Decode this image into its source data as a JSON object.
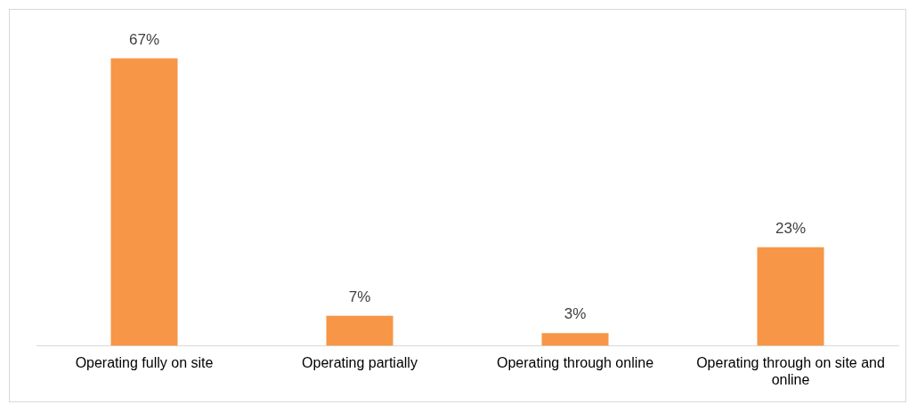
{
  "chart_data": {
    "type": "bar",
    "categories": [
      "Operating fully on site",
      "Operating partially",
      "Operating through online",
      "Operating through on site and online"
    ],
    "values": [
      67,
      7,
      3,
      23
    ],
    "value_labels": [
      "67%",
      "7%",
      "3%",
      "23%"
    ],
    "color": "#f79646",
    "grid": false,
    "legend": false
  }
}
